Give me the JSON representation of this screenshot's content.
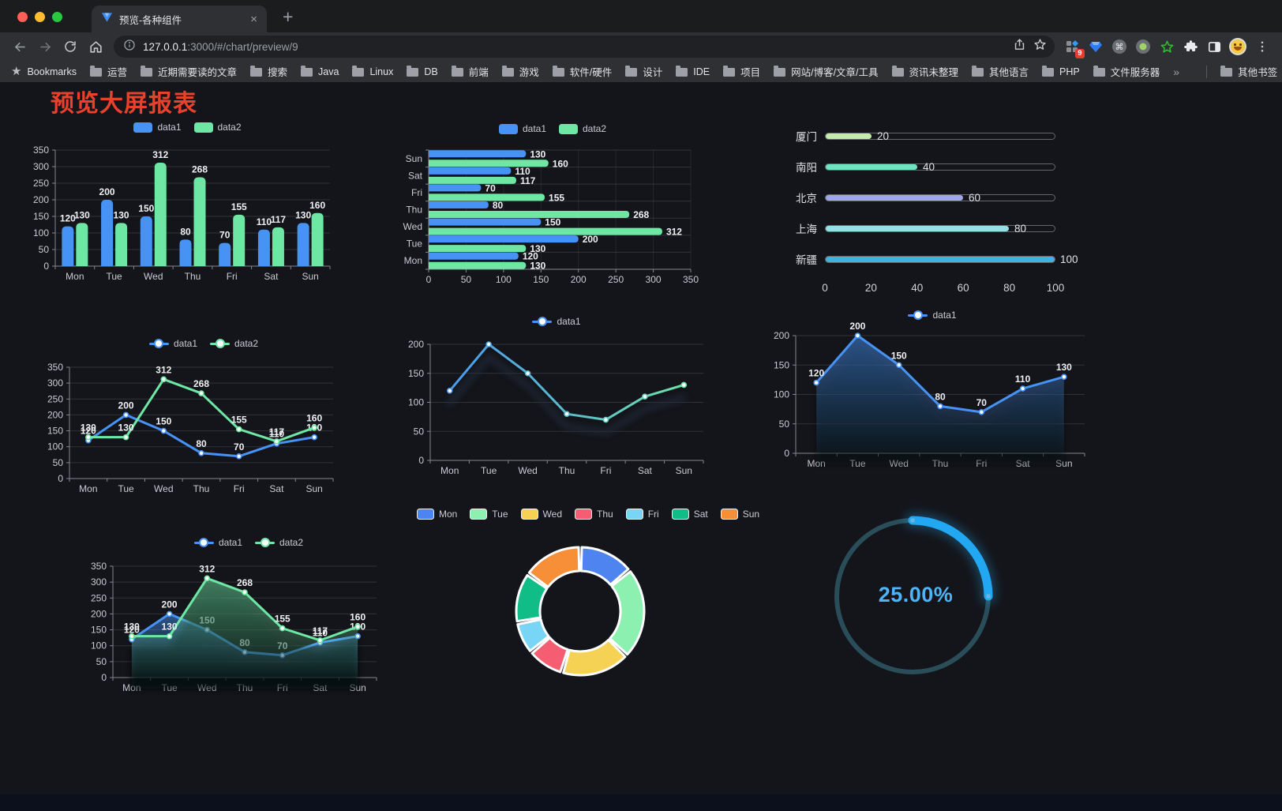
{
  "browser": {
    "traffic_lights": [
      "#ff5f57",
      "#febc2e",
      "#28c840"
    ],
    "tab_title": "预览-各种组件",
    "close_tab_icon": "×",
    "new_tab_icon": "+",
    "url_host": "127.0.0.1",
    "url_rest": ":3000/#/chart/preview/9",
    "extension_badge": "9",
    "bookmarks_label": "Bookmarks",
    "bookmarks": [
      "运营",
      "近期需要读的文章",
      "搜索",
      "Java",
      "Linux",
      "DB",
      "前端",
      "游戏",
      "软件/硬件",
      "设计",
      "IDE",
      "项目",
      "网站/博客/文章/工具",
      "资讯未整理",
      "其他语言",
      "PHP",
      "文件服务器"
    ],
    "bookmarks_overflow_icon": "»",
    "other_bookmarks_label": "其他书签"
  },
  "page": {
    "title": "预览大屏报表",
    "title_color": "#e8412c",
    "background": "#14151a"
  },
  "chart_data": [
    {
      "id": "bar-vertical",
      "type": "bar",
      "categories": [
        "Mon",
        "Tue",
        "Wed",
        "Thu",
        "Fri",
        "Sat",
        "Sun"
      ],
      "series": [
        {
          "name": "data1",
          "color": "#4693f5",
          "values": [
            120,
            200,
            150,
            80,
            70,
            110,
            130
          ]
        },
        {
          "name": "data2",
          "color": "#6ee7a5",
          "values": [
            130,
            130,
            312,
            268,
            155,
            117,
            160
          ]
        }
      ],
      "ylim": [
        0,
        350
      ],
      "ystep": 50,
      "legend_position": "top",
      "grid": true,
      "value_labels": true
    },
    {
      "id": "bar-horizontal",
      "type": "hbar",
      "categories_top_to_bottom": [
        "Sun",
        "Sat",
        "Fri",
        "Thu",
        "Wed",
        "Tue",
        "Mon"
      ],
      "series": [
        {
          "name": "data1",
          "color": "#4693f5",
          "values_top_to_bottom": [
            130,
            110,
            70,
            80,
            150,
            200,
            120
          ]
        },
        {
          "name": "data2",
          "color": "#6ee7a5",
          "values_top_to_bottom": [
            160,
            117,
            155,
            268,
            312,
            130,
            130
          ]
        }
      ],
      "xlim": [
        0,
        350
      ],
      "xstep": 50,
      "legend_position": "top",
      "grid": true,
      "value_labels": true
    },
    {
      "id": "progress-bars",
      "type": "progress",
      "items": [
        {
          "label": "厦门",
          "value": 20,
          "color": "#c4ebad"
        },
        {
          "label": "南阳",
          "value": 40,
          "color": "#6be6c1"
        },
        {
          "label": "北京",
          "value": 60,
          "color": "#a0a7e6"
        },
        {
          "label": "上海",
          "value": 80,
          "color": "#96dee8"
        },
        {
          "label": "新疆",
          "value": 100,
          "color": "#3fb1e3"
        }
      ],
      "xlim": [
        0,
        100
      ],
      "xticks": [
        0,
        20,
        40,
        60,
        80,
        100
      ]
    },
    {
      "id": "line-dual",
      "type": "line",
      "categories": [
        "Mon",
        "Tue",
        "Wed",
        "Thu",
        "Fri",
        "Sat",
        "Sun"
      ],
      "series": [
        {
          "name": "data1",
          "color": "#4693f5",
          "values": [
            120,
            200,
            150,
            80,
            70,
            110,
            130
          ],
          "labels": true
        },
        {
          "name": "data2",
          "color": "#6ee7a5",
          "values": [
            130,
            130,
            312,
            268,
            155,
            117,
            160
          ],
          "labels": true
        }
      ],
      "ylim": [
        0,
        350
      ],
      "ystep": 50,
      "legend_position": "top",
      "grid": true
    },
    {
      "id": "line-gradient",
      "type": "line",
      "shadow": true,
      "categories": [
        "Mon",
        "Tue",
        "Wed",
        "Thu",
        "Fri",
        "Sat",
        "Sun"
      ],
      "series": [
        {
          "name": "data1",
          "gradient": [
            "#4693f5",
            "#6ee7a5"
          ],
          "values": [
            120,
            200,
            150,
            80,
            70,
            110,
            130
          ]
        }
      ],
      "ylim": [
        0,
        200
      ],
      "ystep": 50,
      "legend_position": "top",
      "grid": true
    },
    {
      "id": "line-area",
      "type": "line",
      "categories": [
        "Mon",
        "Tue",
        "Wed",
        "Thu",
        "Fri",
        "Sat",
        "Sun"
      ],
      "series": [
        {
          "name": "data1",
          "color": "#4693f5",
          "values": [
            120,
            200,
            150,
            80,
            70,
            110,
            130
          ],
          "area": true,
          "labels": true
        }
      ],
      "ylim": [
        0,
        200
      ],
      "ystep": 50,
      "legend_position": "top",
      "grid": true
    },
    {
      "id": "line-area-dual",
      "type": "line",
      "categories": [
        "Mon",
        "Tue",
        "Wed",
        "Thu",
        "Fri",
        "Sat",
        "Sun"
      ],
      "series": [
        {
          "name": "data1",
          "color": "#4693f5",
          "values": [
            120,
            200,
            150,
            80,
            70,
            110,
            130
          ],
          "area": true,
          "labels": true
        },
        {
          "name": "data2",
          "color": "#6ee7a5",
          "values": [
            130,
            130,
            312,
            268,
            155,
            117,
            160
          ],
          "area": true,
          "labels": true
        }
      ],
      "ylim": [
        0,
        350
      ],
      "ystep": 50,
      "legend_position": "top",
      "grid": true
    },
    {
      "id": "donut",
      "type": "pie",
      "inner_radius": 51,
      "outer_radius": 81,
      "items": [
        {
          "label": "Mon",
          "value": 120,
          "color": "#4e84f0"
        },
        {
          "label": "Tue",
          "value": 200,
          "color": "#8bf0b0"
        },
        {
          "label": "Wed",
          "value": 150,
          "color": "#f6d254"
        },
        {
          "label": "Thu",
          "value": 80,
          "color": "#f55e72"
        },
        {
          "label": "Fri",
          "value": 70,
          "color": "#78d5f5"
        },
        {
          "label": "Sat",
          "value": 110,
          "color": "#10bd86"
        },
        {
          "label": "Sun",
          "value": 130,
          "color": "#f78e38"
        }
      ],
      "legend_position": "top"
    },
    {
      "id": "gauge",
      "type": "gauge",
      "value_text": "25.00%",
      "percent": 25,
      "arc_color": "#22a7f2",
      "track_color": "#2a4d5a",
      "text_color": "#4db5f7"
    }
  ]
}
